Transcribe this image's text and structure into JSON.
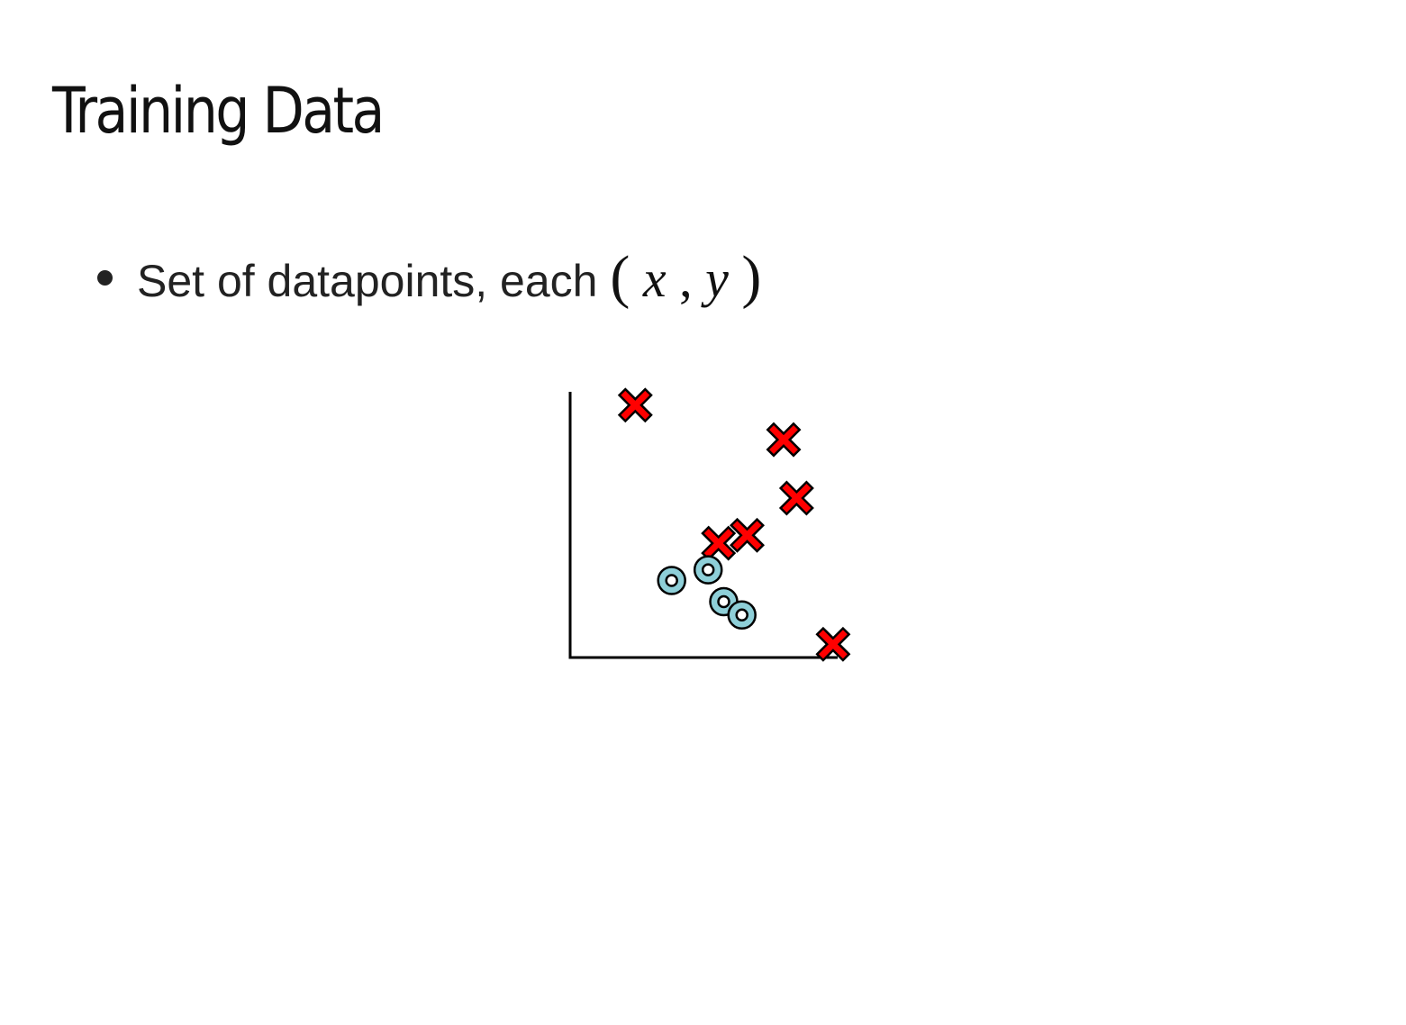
{
  "slide": {
    "title": "Training Data",
    "bullet": {
      "text": "Set of datapoints, each ",
      "math": {
        "open_paren": "(",
        "var_x": "x",
        "comma": ", ",
        "var_y": "y",
        "close_paren": ")"
      }
    }
  },
  "chart_data": {
    "type": "scatter",
    "title": "",
    "xlabel": "",
    "ylabel": "",
    "xlim": [
      0,
      10
    ],
    "ylim": [
      0,
      10
    ],
    "grid": false,
    "ticks": false,
    "series": [
      {
        "marker": "x-cross",
        "color": "#ff0000",
        "outline": "#000000",
        "points": [
          {
            "x": 2.5,
            "y": 9.5
          },
          {
            "x": 8.2,
            "y": 8.2
          },
          {
            "x": 8.7,
            "y": 6.0
          },
          {
            "x": 6.8,
            "y": 4.6
          },
          {
            "x": 5.7,
            "y": 4.3
          },
          {
            "x": 10.1,
            "y": 0.5
          }
        ]
      },
      {
        "marker": "ring",
        "color": "#8ecfd8",
        "outline": "#000000",
        "points": [
          {
            "x": 3.9,
            "y": 2.9
          },
          {
            "x": 5.3,
            "y": 3.3
          },
          {
            "x": 5.9,
            "y": 2.1
          },
          {
            "x": 6.6,
            "y": 1.6
          }
        ]
      }
    ]
  }
}
